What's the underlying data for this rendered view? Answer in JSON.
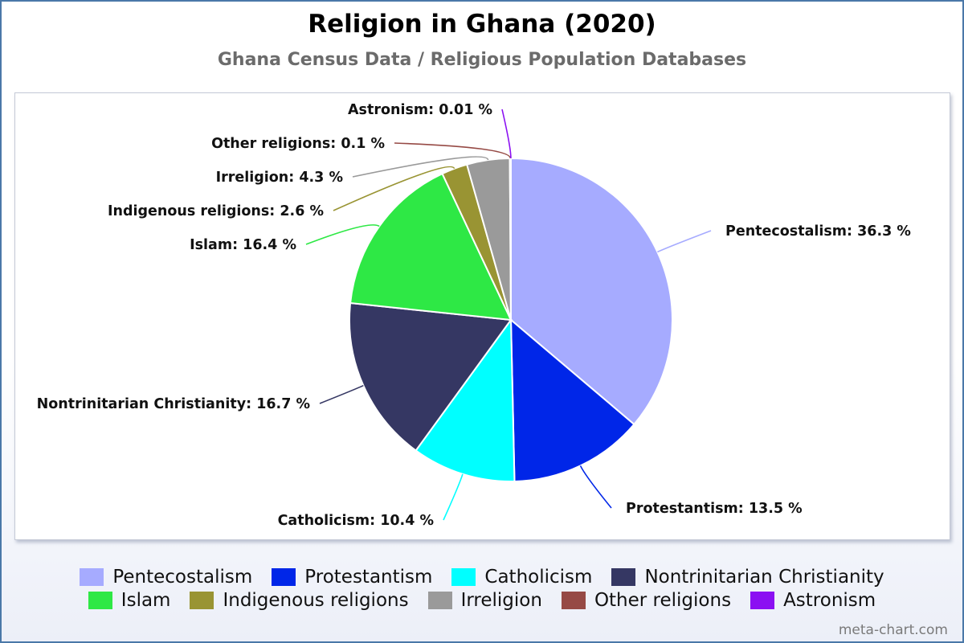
{
  "chart_data": {
    "type": "pie",
    "title": "Religion in Ghana (2020)",
    "subtitle": "Ghana Census Data / Religious Population Databases",
    "legend_position": "bottom",
    "slices": [
      {
        "name": "Pentecostalism",
        "value": 36.3,
        "label": "Pentecostalism: 36.3 %",
        "color": "#a6abff"
      },
      {
        "name": "Protestantism",
        "value": 13.5,
        "label": "Protestantism: 13.5 %",
        "color": "#0026e8"
      },
      {
        "name": "Catholicism",
        "value": 10.4,
        "label": "Catholicism: 10.4 %",
        "color": "#00ffff"
      },
      {
        "name": "Nontrinitarian Christianity",
        "value": 16.7,
        "label": "Nontrinitarian Christianity: 16.7 %",
        "color": "#353763"
      },
      {
        "name": "Islam",
        "value": 16.4,
        "label": "Islam: 16.4 %",
        "color": "#2ee845"
      },
      {
        "name": "Indigenous religions",
        "value": 2.6,
        "label": "Indigenous religions: 2.6 %",
        "color": "#999433"
      },
      {
        "name": "Irreligion",
        "value": 4.3,
        "label": "Irreligion: 4.3 %",
        "color": "#9a9a9a"
      },
      {
        "name": "Other religions",
        "value": 0.1,
        "label": "Other religions: 0.1 %",
        "color": "#964a45"
      },
      {
        "name": "Astronism",
        "value": 0.01,
        "label": "Astronism: 0.01 %",
        "color": "#8b10f2"
      }
    ]
  },
  "watermark": "meta-chart.com"
}
